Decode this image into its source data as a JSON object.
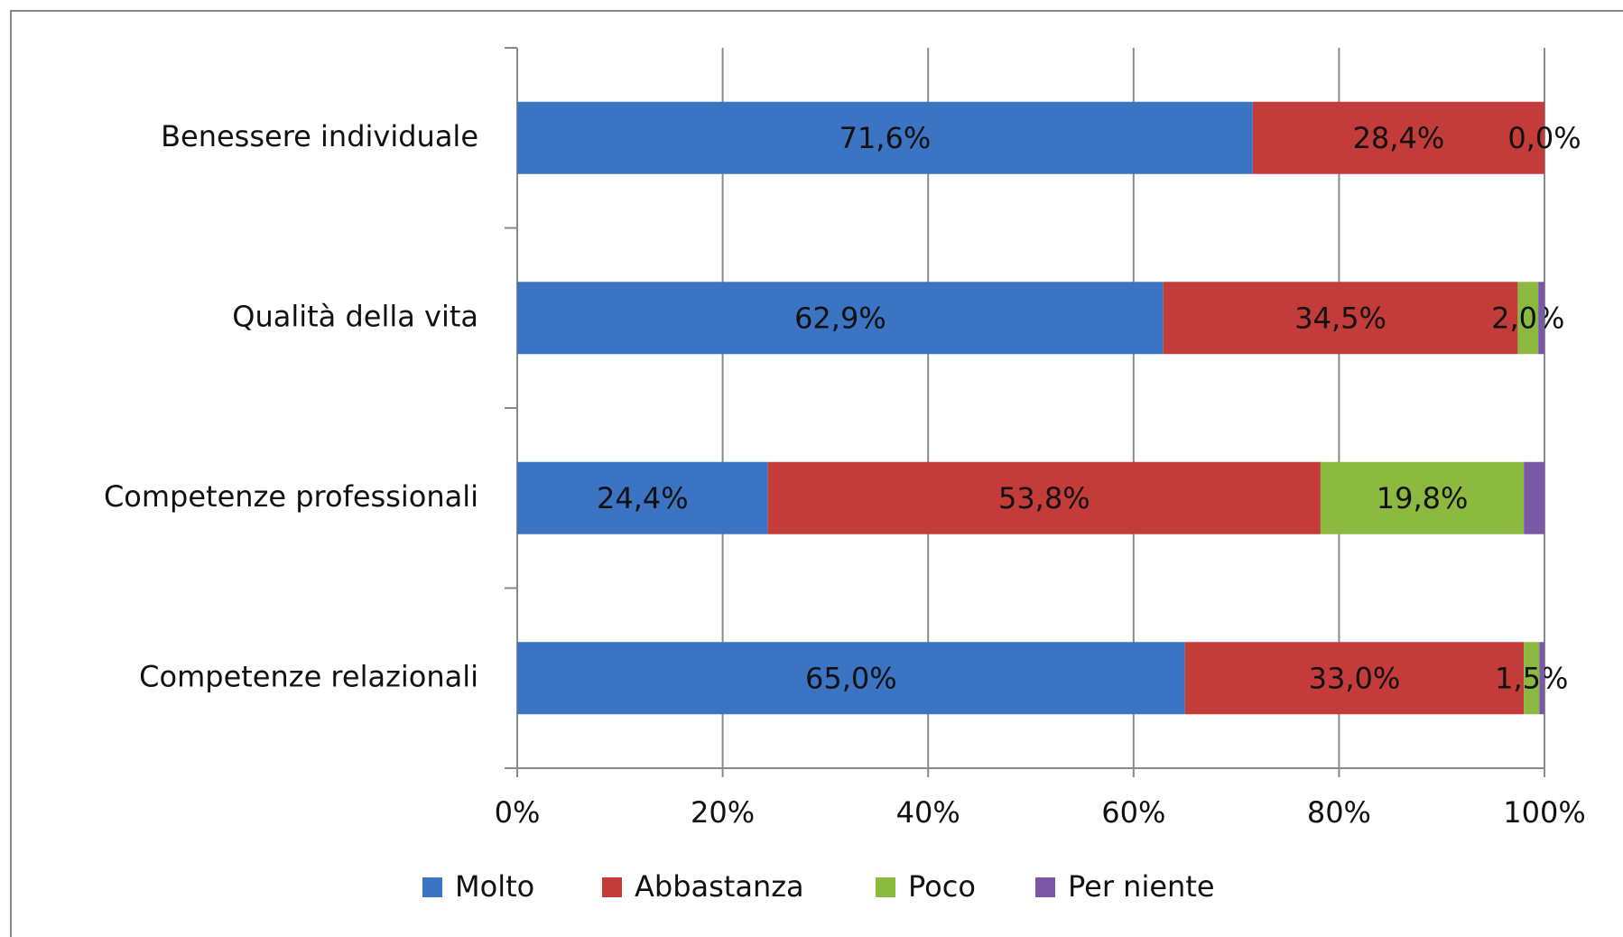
{
  "chart_data": {
    "type": "bar",
    "orientation": "horizontal",
    "stacked": true,
    "categories": [
      "Benessere individuale",
      "Qualità della vita",
      "Competenze professionali",
      "Competenze relazionali"
    ],
    "series": [
      {
        "name": "Molto",
        "color": "#3a74c2",
        "values": [
          71.6,
          62.9,
          24.4,
          65.0
        ],
        "value_labels": [
          "71,6%",
          "62,9%",
          "24,4%",
          "65,0%"
        ]
      },
      {
        "name": "Abbastanza",
        "color": "#c43c3a",
        "values": [
          28.4,
          34.5,
          53.8,
          33.0
        ],
        "value_labels": [
          "28,4%",
          "34,5%",
          "53,8%",
          "33,0%"
        ]
      },
      {
        "name": "Poco",
        "color": "#8cb93f",
        "values": [
          0.0,
          2.0,
          19.8,
          1.5
        ],
        "value_labels": [
          "0,0%",
          "2,0%",
          "19,8%",
          "1,5%"
        ]
      },
      {
        "name": "Per niente",
        "color": "#7b58a6",
        "values": [
          0.0,
          0.6,
          2.0,
          0.5
        ],
        "value_labels": [
          null,
          null,
          null,
          null
        ]
      }
    ],
    "xlim": [
      0,
      100
    ],
    "xticks": [
      {
        "value": 0,
        "label": "0%"
      },
      {
        "value": 20,
        "label": "20%"
      },
      {
        "value": 40,
        "label": "40%"
      },
      {
        "value": 60,
        "label": "60%"
      },
      {
        "value": 80,
        "label": "80%"
      },
      {
        "value": 100,
        "label": "100%"
      }
    ],
    "grid": true,
    "legend": "bottom"
  }
}
